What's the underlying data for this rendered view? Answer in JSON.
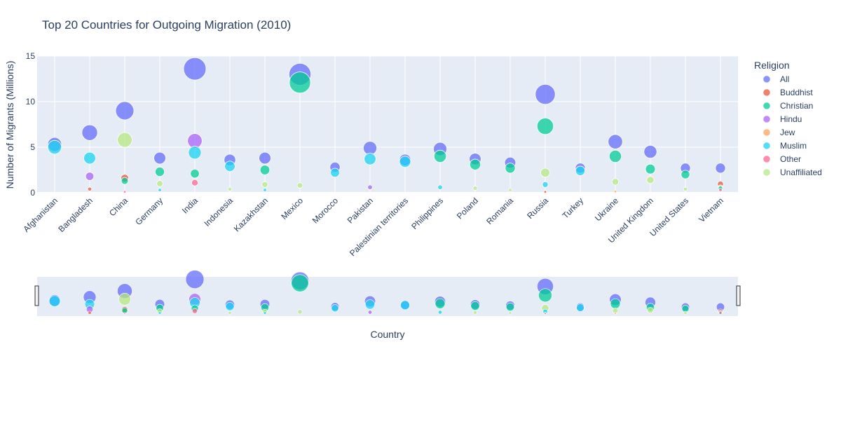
{
  "chart_data": {
    "type": "scatter",
    "title": "Top 20 Countries for Outgoing Migration (2010)",
    "xlabel": "Country",
    "ylabel": "Number of Migrants (Millions)",
    "ylim": [
      0,
      15
    ],
    "yticks": [
      0,
      5,
      10,
      15
    ],
    "grid": true,
    "legend_title": "Religion",
    "legend_position": "right",
    "categories": [
      "Afghanistan",
      "Bangladesh",
      "China",
      "Germany",
      "India",
      "Indonesia",
      "Kazakhstan",
      "Mexico",
      "Morocco",
      "Pakistan",
      "Palestinian territories",
      "Philippines",
      "Poland",
      "Romania",
      "Russia",
      "Turkey",
      "Ukraine",
      "United Kingdom",
      "United States",
      "Vietnam"
    ],
    "series": [
      {
        "name": "All",
        "color": "#636efa",
        "values": [
          5.3,
          6.6,
          9.0,
          3.8,
          13.6,
          3.6,
          3.8,
          13.0,
          2.8,
          4.9,
          3.6,
          4.8,
          3.7,
          3.3,
          10.8,
          2.7,
          5.6,
          4.5,
          2.7,
          2.7
        ]
      },
      {
        "name": "Buddhist",
        "color": "#EF553B",
        "values": [
          null,
          0.4,
          1.6,
          null,
          null,
          null,
          null,
          null,
          null,
          null,
          null,
          null,
          null,
          null,
          0.1,
          null,
          null,
          null,
          null,
          0.95
        ]
      },
      {
        "name": "Christian",
        "color": "#00cc96",
        "values": [
          null,
          null,
          1.3,
          2.3,
          2.1,
          null,
          2.5,
          12.1,
          null,
          null,
          null,
          4.0,
          3.1,
          2.7,
          7.3,
          null,
          4.0,
          2.6,
          2.0,
          0.5
        ]
      },
      {
        "name": "Hindu",
        "color": "#ab63fa",
        "values": [
          null,
          1.8,
          null,
          null,
          5.7,
          null,
          null,
          null,
          null,
          0.6,
          null,
          null,
          null,
          null,
          null,
          null,
          null,
          null,
          null,
          null
        ]
      },
      {
        "name": "Jew",
        "color": "#FFA15A",
        "values": [
          null,
          null,
          null,
          null,
          null,
          null,
          null,
          null,
          null,
          null,
          null,
          null,
          null,
          null,
          0.15,
          null,
          0.15,
          null,
          null,
          null
        ]
      },
      {
        "name": "Muslim",
        "color": "#19d3f3",
        "values": [
          5.0,
          3.8,
          null,
          0.3,
          4.4,
          2.9,
          0.3,
          null,
          2.2,
          3.7,
          3.4,
          0.6,
          null,
          null,
          0.9,
          2.4,
          null,
          null,
          null,
          null
        ]
      },
      {
        "name": "Other",
        "color": "#FF6692",
        "values": [
          null,
          null,
          0.1,
          null,
          1.1,
          null,
          null,
          null,
          null,
          null,
          null,
          null,
          null,
          null,
          null,
          null,
          null,
          null,
          null,
          0.3
        ]
      },
      {
        "name": "Unaffiliated",
        "color": "#B6E880",
        "values": [
          null,
          null,
          5.8,
          1.0,
          null,
          0.4,
          0.9,
          0.8,
          null,
          null,
          null,
          null,
          0.5,
          0.3,
          2.2,
          null,
          1.2,
          1.4,
          0.4,
          0.6
        ]
      }
    ]
  }
}
